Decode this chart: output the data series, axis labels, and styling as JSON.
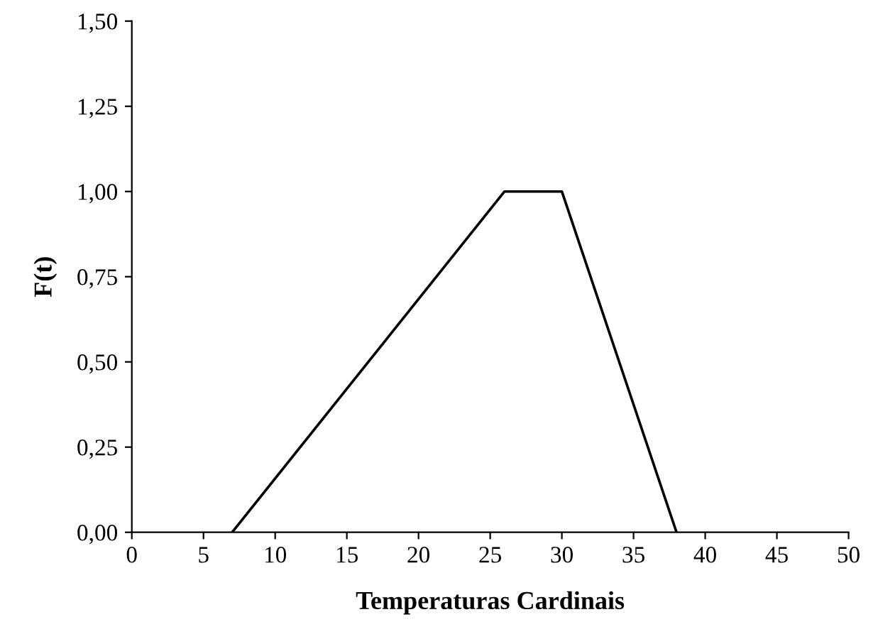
{
  "chart_data": {
    "type": "line",
    "xlabel": "Temperaturas Cardinais",
    "ylabel": "F(t)",
    "x": [
      7,
      26,
      30,
      38
    ],
    "series": [
      {
        "color": "#000000",
        "values": [
          0,
          1,
          1,
          0
        ]
      }
    ],
    "xlim": [
      0,
      50
    ],
    "xticks": [
      0,
      5,
      10,
      15,
      20,
      25,
      30,
      35,
      40,
      45,
      50
    ],
    "ylim": [
      0,
      1.5
    ],
    "yticks": [
      {
        "value": 0,
        "label": "0,00"
      },
      {
        "value": 0.25,
        "label": "0,25"
      },
      {
        "value": 0.5,
        "label": "0,50"
      },
      {
        "value": 0.75,
        "label": "0,75"
      },
      {
        "value": 1,
        "label": "1,00"
      },
      {
        "value": 1.25,
        "label": "1,25"
      },
      {
        "value": 1.5,
        "label": "1,50"
      }
    ],
    "grid": false,
    "legend": false,
    "marker": "none",
    "line_style": "solid"
  }
}
